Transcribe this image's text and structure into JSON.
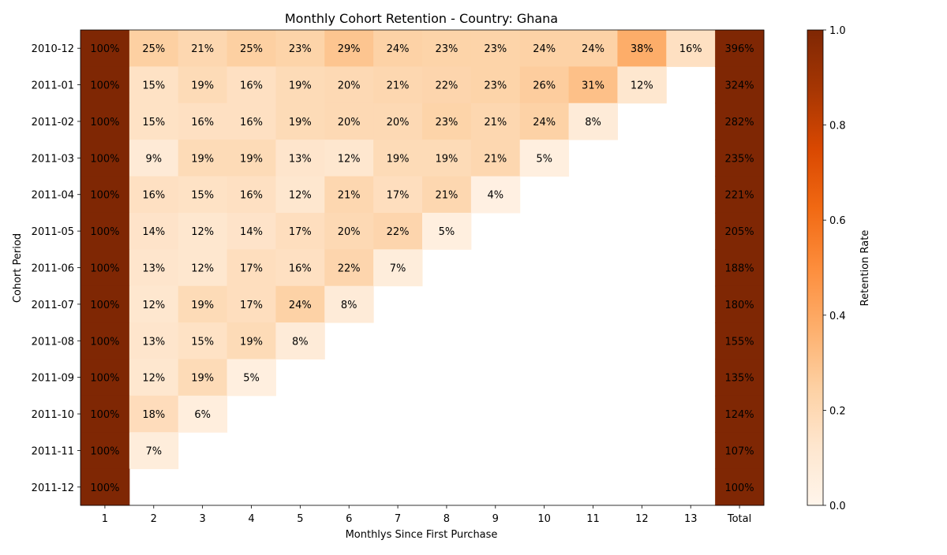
{
  "chart_data": {
    "type": "heatmap",
    "title": "Monthly Cohort Retention - Country: Ghana",
    "xlabel": "Monthlys Since First Purchase",
    "ylabel": "Cohort Period",
    "x_categories": [
      "1",
      "2",
      "3",
      "4",
      "5",
      "6",
      "7",
      "8",
      "9",
      "10",
      "11",
      "12",
      "13",
      "Total"
    ],
    "y_categories": [
      "2010-12",
      "2011-01",
      "2011-02",
      "2011-03",
      "2011-04",
      "2011-05",
      "2011-06",
      "2011-07",
      "2011-08",
      "2011-09",
      "2011-10",
      "2011-11",
      "2011-12"
    ],
    "values": [
      [
        100,
        25,
        21,
        25,
        23,
        29,
        24,
        23,
        23,
        24,
        24,
        38,
        16,
        396
      ],
      [
        100,
        15,
        19,
        16,
        19,
        20,
        21,
        22,
        23,
        26,
        31,
        12,
        null,
        324
      ],
      [
        100,
        15,
        16,
        16,
        19,
        20,
        20,
        23,
        21,
        24,
        8,
        null,
        null,
        282
      ],
      [
        100,
        9,
        19,
        19,
        13,
        12,
        19,
        19,
        21,
        5,
        null,
        null,
        null,
        235
      ],
      [
        100,
        16,
        15,
        16,
        12,
        21,
        17,
        21,
        4,
        null,
        null,
        null,
        null,
        221
      ],
      [
        100,
        14,
        12,
        14,
        17,
        20,
        22,
        5,
        null,
        null,
        null,
        null,
        null,
        205
      ],
      [
        100,
        13,
        12,
        17,
        16,
        22,
        7,
        null,
        null,
        null,
        null,
        null,
        null,
        188
      ],
      [
        100,
        12,
        19,
        17,
        24,
        8,
        null,
        null,
        null,
        null,
        null,
        null,
        null,
        180
      ],
      [
        100,
        13,
        15,
        19,
        8,
        null,
        null,
        null,
        null,
        null,
        null,
        null,
        null,
        155
      ],
      [
        100,
        12,
        19,
        5,
        null,
        null,
        null,
        null,
        null,
        null,
        null,
        null,
        null,
        135
      ],
      [
        100,
        18,
        6,
        null,
        null,
        null,
        null,
        null,
        null,
        null,
        null,
        null,
        null,
        124
      ],
      [
        100,
        7,
        null,
        null,
        null,
        null,
        null,
        null,
        null,
        null,
        null,
        null,
        null,
        107
      ],
      [
        100,
        null,
        null,
        null,
        null,
        null,
        null,
        null,
        null,
        null,
        null,
        null,
        null,
        100
      ]
    ],
    "value_format": "percent",
    "colormap": "Oranges",
    "colorbar": {
      "label": "Retention Rate",
      "range": [
        0.0,
        1.0
      ],
      "ticks": [
        "0.0",
        "0.2",
        "0.4",
        "0.6",
        "0.8",
        "1.0"
      ]
    }
  }
}
